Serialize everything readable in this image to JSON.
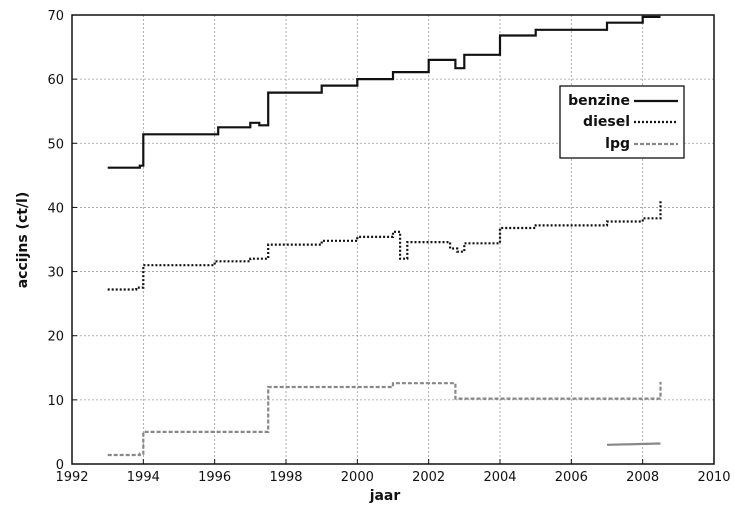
{
  "chart_data": {
    "type": "line",
    "title": "",
    "xlabel": "jaar",
    "ylabel": "accijns (ct/l)",
    "xlim": [
      1992,
      2010
    ],
    "ylim": [
      0,
      70
    ],
    "xticks": [
      1992,
      1994,
      1996,
      1998,
      2000,
      2002,
      2004,
      2006,
      2008,
      2010
    ],
    "yticks": [
      0,
      10,
      20,
      30,
      40,
      50,
      60,
      70
    ],
    "grid": true,
    "legend_position": "top-right",
    "series": [
      {
        "name": "benzine",
        "style": "solid",
        "color": "#111111",
        "points": [
          [
            1993.0,
            46.2
          ],
          [
            1993.9,
            46.2
          ],
          [
            1993.9,
            46.5
          ],
          [
            1994.0,
            46.5
          ],
          [
            1994.0,
            51.4
          ],
          [
            1996.1,
            51.4
          ],
          [
            1996.1,
            52.5
          ],
          [
            1997.0,
            52.5
          ],
          [
            1997.0,
            53.2
          ],
          [
            1997.25,
            53.2
          ],
          [
            1997.25,
            52.8
          ],
          [
            1997.5,
            52.8
          ],
          [
            1997.5,
            57.9
          ],
          [
            1999.0,
            57.9
          ],
          [
            1999.0,
            59.0
          ],
          [
            2000.0,
            59.0
          ],
          [
            2000.0,
            60.0
          ],
          [
            2001.0,
            60.0
          ],
          [
            2001.0,
            61.1
          ],
          [
            2002.0,
            61.1
          ],
          [
            2002.0,
            63.0
          ],
          [
            2002.75,
            63.0
          ],
          [
            2002.75,
            61.7
          ],
          [
            2003.0,
            61.7
          ],
          [
            2003.0,
            63.8
          ],
          [
            2004.0,
            63.8
          ],
          [
            2004.0,
            66.8
          ],
          [
            2005.0,
            66.8
          ],
          [
            2005.0,
            67.7
          ],
          [
            2007.0,
            67.7
          ],
          [
            2007.0,
            68.8
          ],
          [
            2008.0,
            68.8
          ],
          [
            2008.0,
            69.7
          ],
          [
            2008.5,
            69.7
          ]
        ]
      },
      {
        "name": "diesel",
        "style": "dotted",
        "color": "#111111",
        "points": [
          [
            1993.0,
            27.2
          ],
          [
            1993.8,
            27.2
          ],
          [
            1993.8,
            27.5
          ],
          [
            1994.0,
            27.5
          ],
          [
            1994.0,
            31.0
          ],
          [
            1996.0,
            31.0
          ],
          [
            1996.0,
            31.6
          ],
          [
            1997.0,
            31.6
          ],
          [
            1997.0,
            32.0
          ],
          [
            1997.5,
            32.0
          ],
          [
            1997.5,
            34.2
          ],
          [
            1999.0,
            34.2
          ],
          [
            1999.0,
            34.8
          ],
          [
            2000.0,
            34.8
          ],
          [
            2000.0,
            35.4
          ],
          [
            2001.0,
            35.4
          ],
          [
            2001.0,
            36.2
          ],
          [
            2001.2,
            36.2
          ],
          [
            2001.2,
            32.0
          ],
          [
            2001.4,
            32.0
          ],
          [
            2001.4,
            34.6
          ],
          [
            2002.6,
            34.6
          ],
          [
            2002.6,
            33.6
          ],
          [
            2002.8,
            33.6
          ],
          [
            2002.8,
            33.1
          ],
          [
            2003.0,
            33.1
          ],
          [
            2003.0,
            34.4
          ],
          [
            2004.0,
            34.4
          ],
          [
            2004.0,
            36.8
          ],
          [
            2005.0,
            36.8
          ],
          [
            2005.0,
            37.2
          ],
          [
            2007.0,
            37.2
          ],
          [
            2007.0,
            37.8
          ],
          [
            2008.0,
            37.8
          ],
          [
            2008.0,
            38.3
          ],
          [
            2008.5,
            38.3
          ],
          [
            2008.5,
            41.2
          ]
        ]
      },
      {
        "name": "lpg",
        "style": "dashed",
        "color": "#888888",
        "points": [
          [
            1993.0,
            1.4
          ],
          [
            1993.9,
            1.4
          ],
          [
            1993.9,
            1.6
          ],
          [
            1994.0,
            1.6
          ],
          [
            1994.0,
            5.0
          ],
          [
            1997.5,
            5.0
          ],
          [
            1997.5,
            12.0
          ],
          [
            2001.0,
            12.0
          ],
          [
            2001.0,
            12.6
          ],
          [
            2002.75,
            12.6
          ],
          [
            2002.75,
            10.2
          ],
          [
            2008.5,
            10.2
          ],
          [
            2008.5,
            12.8
          ]
        ]
      },
      {
        "name": "",
        "style": "solid",
        "color": "#888888",
        "points": [
          [
            2007.0,
            3.0
          ],
          [
            2008.5,
            3.2
          ]
        ]
      }
    ]
  }
}
